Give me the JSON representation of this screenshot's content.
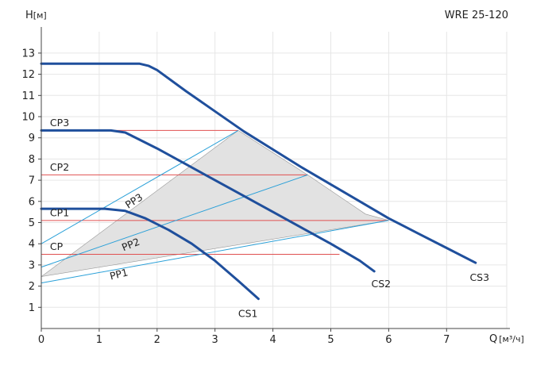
{
  "chart_data": {
    "type": "line",
    "model_label": "WRE 25-120",
    "y_axis_label": "H",
    "y_axis_unit": "[м]",
    "x_axis_label": "Q",
    "x_axis_unit": "[м³/ч]",
    "xlim": [
      0,
      8
    ],
    "ylim": [
      0,
      13.5
    ],
    "x_ticks": [
      0,
      1,
      2,
      3,
      4,
      5,
      6,
      7
    ],
    "y_ticks": [
      1,
      2,
      3,
      4,
      5,
      6,
      7,
      8,
      9,
      10,
      11,
      12,
      13
    ],
    "grid": true,
    "colors": {
      "cs_curve": "#1f4f9c",
      "pp_line": "#2aa0d8",
      "cp_line": "#e05050",
      "region_fill": "#e2e2e2",
      "grid": "#e6e6e6"
    },
    "cs_curves": [
      {
        "name": "CS1",
        "points": [
          [
            0,
            5.65
          ],
          [
            1.1,
            5.65
          ],
          [
            1.45,
            5.55
          ],
          [
            1.8,
            5.2
          ],
          [
            2.2,
            4.65
          ],
          [
            2.6,
            4.0
          ],
          [
            3.0,
            3.2
          ],
          [
            3.4,
            2.25
          ],
          [
            3.75,
            1.4
          ]
        ]
      },
      {
        "name": "CS2",
        "points": [
          [
            0,
            9.35
          ],
          [
            1.2,
            9.35
          ],
          [
            1.45,
            9.25
          ],
          [
            2.0,
            8.5
          ],
          [
            2.5,
            7.75
          ],
          [
            3.0,
            7.0
          ],
          [
            3.5,
            6.25
          ],
          [
            4.0,
            5.5
          ],
          [
            4.5,
            4.75
          ],
          [
            5.0,
            4.0
          ],
          [
            5.5,
            3.2
          ],
          [
            5.75,
            2.7
          ]
        ]
      },
      {
        "name": "CS3",
        "points": [
          [
            0,
            12.5
          ],
          [
            1.7,
            12.5
          ],
          [
            1.85,
            12.4
          ],
          [
            2.0,
            12.2
          ],
          [
            2.5,
            11.2
          ],
          [
            3.0,
            10.25
          ],
          [
            3.5,
            9.3
          ],
          [
            4.0,
            8.45
          ],
          [
            4.5,
            7.6
          ],
          [
            5.0,
            6.8
          ],
          [
            5.5,
            6.0
          ],
          [
            6.0,
            5.2
          ],
          [
            6.5,
            4.5
          ],
          [
            7.0,
            3.8
          ],
          [
            7.5,
            3.1
          ]
        ]
      }
    ],
    "pp_lines": [
      {
        "name": "PP1",
        "points": [
          [
            0,
            2.15
          ],
          [
            6.0,
            5.1
          ]
        ]
      },
      {
        "name": "PP2",
        "points": [
          [
            0,
            2.9
          ],
          [
            4.6,
            7.25
          ]
        ]
      },
      {
        "name": "PP3",
        "points": [
          [
            0,
            4.0
          ],
          [
            3.4,
            9.35
          ]
        ]
      }
    ],
    "cp_lines": [
      {
        "name": "CP",
        "value": 3.5,
        "x_end": 5.15
      },
      {
        "name": "CP1",
        "value": 5.1,
        "x_end": 6.0
      },
      {
        "name": "CP2",
        "value": 7.25,
        "x_end": 4.6
      },
      {
        "name": "CP3",
        "value": 9.35,
        "x_end": 3.4
      }
    ],
    "region": [
      [
        0,
        2.45
      ],
      [
        6.0,
        5.1
      ],
      [
        5.6,
        5.4
      ],
      [
        4.6,
        7.25
      ],
      [
        3.4,
        9.35
      ]
    ],
    "curve_labels": [
      {
        "text": "CS1",
        "x": 3.4,
        "y": 0.55
      },
      {
        "text": "CS2",
        "x": 5.7,
        "y": 1.95
      },
      {
        "text": "CS3",
        "x": 7.4,
        "y": 2.25
      },
      {
        "text": "PP1",
        "x": 1.2,
        "y": 2.3
      },
      {
        "text": "PP2",
        "x": 1.42,
        "y": 3.65
      },
      {
        "text": "PP3",
        "x": 1.5,
        "y": 5.65
      },
      {
        "text": "CP",
        "x": 0.15,
        "y": 3.7
      },
      {
        "text": "CP1",
        "x": 0.15,
        "y": 5.3
      },
      {
        "text": "CP2",
        "x": 0.15,
        "y": 7.45
      },
      {
        "text": "CP3",
        "x": 0.15,
        "y": 9.55
      }
    ]
  }
}
